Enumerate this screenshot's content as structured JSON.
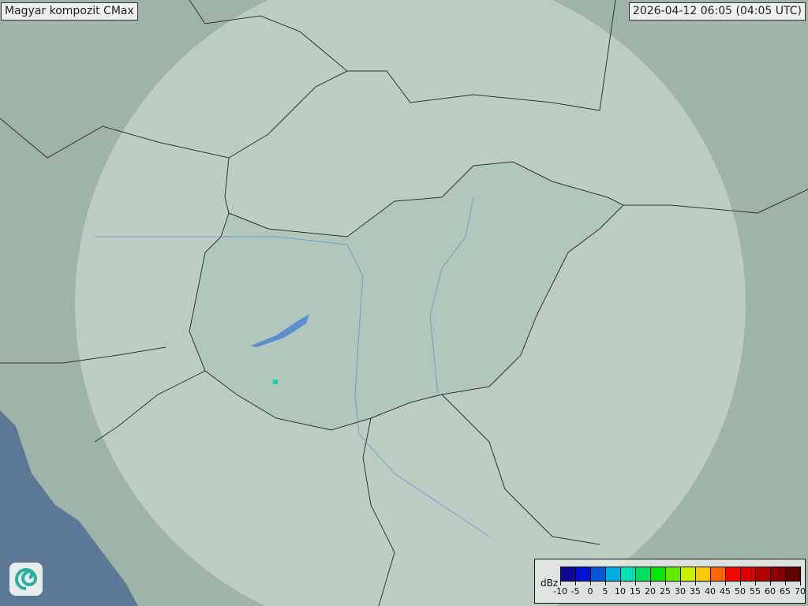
{
  "map": {
    "title": "Magyar kompozit  CMax",
    "timestamp": "2026-04-12 06:05 (04:05 UTC)",
    "colors": {
      "land": "#9fb3a6",
      "radar_coverage": "#c8d6cc",
      "hungary_fill": "#a9c2b4",
      "sea": "#5b7896",
      "border": "#333333",
      "river": "#5c8fd0",
      "echo": "#00d8b0"
    },
    "logo_icon": "swirl-logo-icon"
  },
  "legend": {
    "unit": "dBz",
    "ticks": [
      "-10",
      "-5",
      "0",
      "5",
      "10",
      "15",
      "20",
      "25",
      "30",
      "35",
      "40",
      "45",
      "50",
      "55",
      "60",
      "65",
      "70"
    ],
    "colors": [
      "#0a0a96",
      "#0010d0",
      "#0058d8",
      "#00b0e0",
      "#00e0b8",
      "#00e060",
      "#00e800",
      "#60ec00",
      "#c8f000",
      "#f8c800",
      "#ff6400",
      "#ff0000",
      "#d80000",
      "#b00000",
      "#880000",
      "#600000"
    ]
  }
}
